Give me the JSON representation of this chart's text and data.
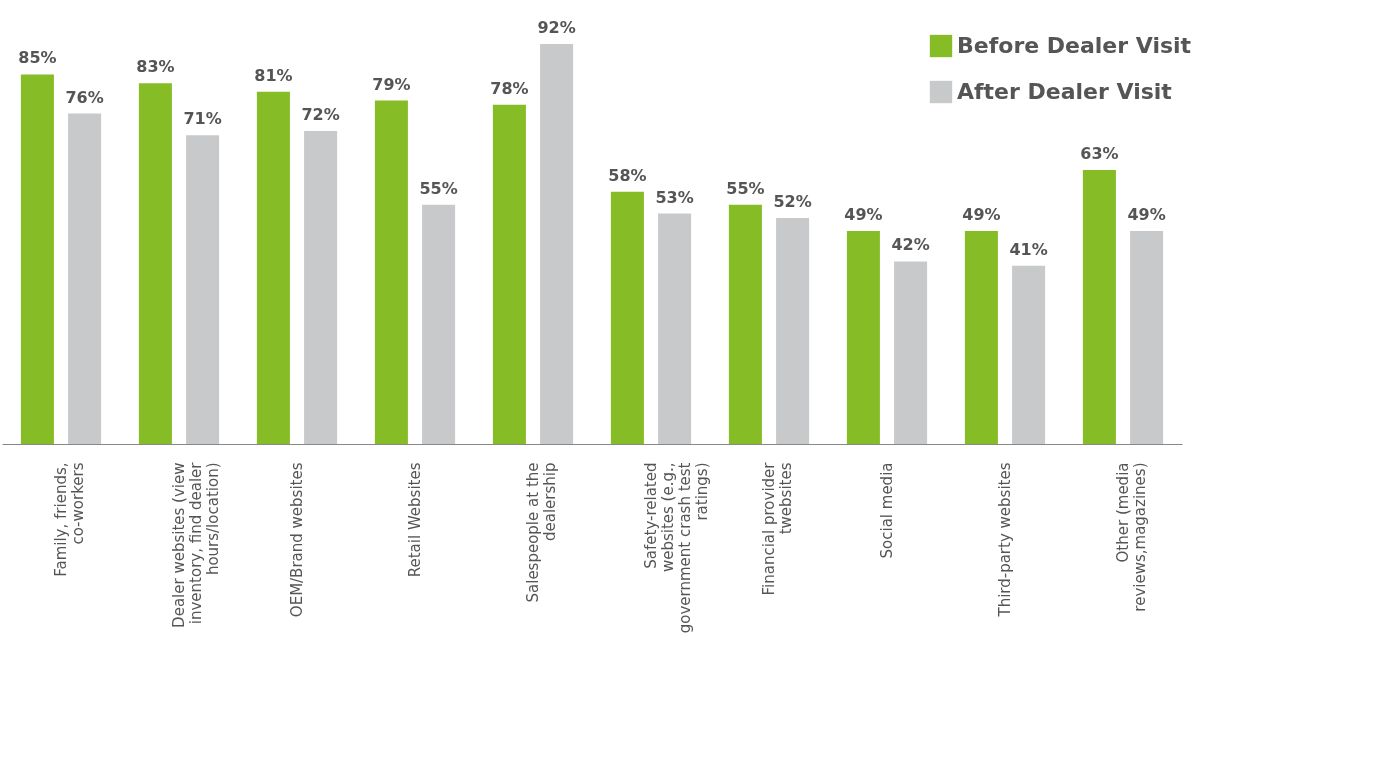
{
  "chart_data": {
    "type": "bar",
    "categories": [
      "Family, friends, co-workers",
      "Dealer websites (view inventory, find dealer hours/location)",
      "OEM/Brand websites",
      "Retail Websites",
      "Salespeople at the dealership",
      "Safety-related websites (e.g., government crash test ratings)",
      "Financial provider twebsites",
      "Social media",
      "Third-party websites",
      "Other (media reviews,magazines)"
    ],
    "series": [
      {
        "name": "Before Dealer Visit",
        "color": "#86bc25",
        "values": [
          85,
          83,
          81,
          79,
          78,
          58,
          55,
          49,
          49,
          63
        ],
        "value_labels": [
          "85%",
          "83%",
          "81%",
          "79%",
          "78%",
          "58%",
          "55%",
          "49%",
          "49%",
          "63%"
        ]
      },
      {
        "name": "After Dealer Visit",
        "color": "#c8c9cb",
        "values": [
          76,
          71,
          72,
          55,
          92,
          53,
          52,
          42,
          41,
          49
        ],
        "value_labels": [
          "76%",
          "71%",
          "72%",
          "55%",
          "92%",
          "53%",
          "52%",
          "42%",
          "41%",
          "49%"
        ]
      }
    ],
    "legend": "top right",
    "grid": false
  }
}
